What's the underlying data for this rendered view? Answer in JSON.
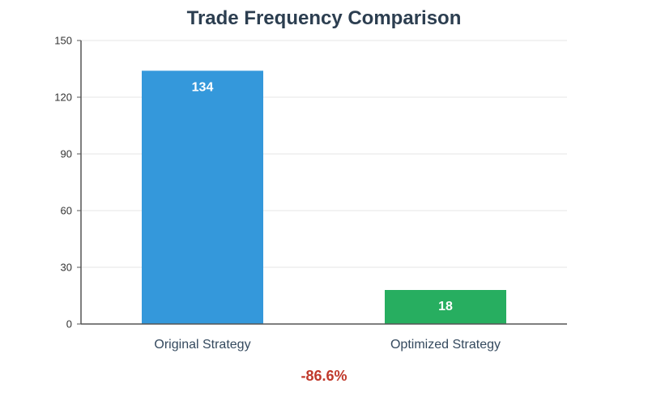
{
  "chart_data": {
    "type": "bar",
    "title": "Trade Frequency Comparison",
    "categories": [
      "Original Strategy",
      "Optimized Strategy"
    ],
    "values": [
      134,
      18
    ],
    "colors": [
      "#3498db",
      "#27ae60"
    ],
    "ylim": [
      0,
      150
    ],
    "yticks": [
      0,
      30,
      60,
      90,
      120,
      150
    ],
    "grid": true,
    "xlabel": "",
    "ylabel": "",
    "annotation": {
      "text": "-86.6%",
      "color": "#c0392b"
    }
  }
}
